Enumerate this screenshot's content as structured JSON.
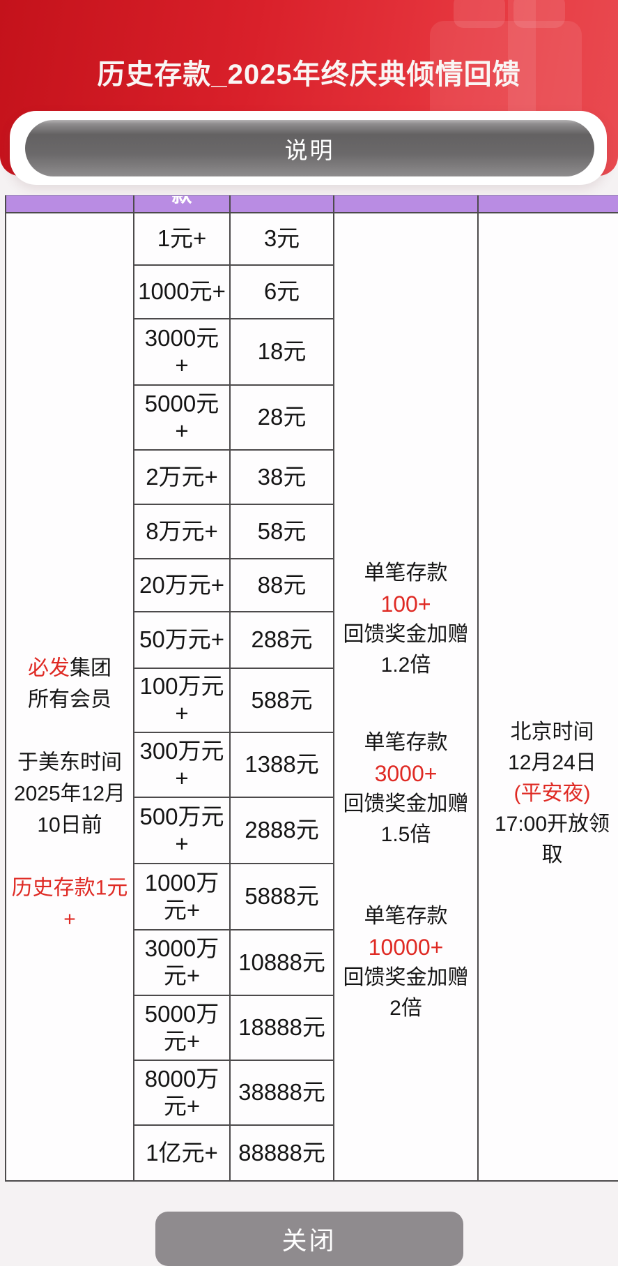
{
  "header": {
    "title": "历史存款_2025年终庆典倾情回馈"
  },
  "buttons": {
    "explain": "说明",
    "close": "关闭"
  },
  "colors": {
    "header_red_dark": "#c4121b",
    "header_red_light": "#e94b51",
    "table_header_purple": "#b98ce3",
    "border_gray": "#4c4a4b",
    "accent_red": "#df2a24",
    "pill_gray": "#6b696a",
    "close_gray": "#8f8b8e"
  },
  "icons": {
    "gift_watermark": "gift-icon"
  },
  "table": {
    "header_visible_fragment": "款",
    "condition_lines": [
      [
        {
          "t": "必发",
          "red": true
        },
        {
          "t": "集团",
          "red": false
        }
      ],
      [
        {
          "t": "所有会员",
          "red": false
        }
      ],
      [],
      [
        {
          "t": "于美东时间",
          "red": false
        }
      ],
      [
        {
          "t": "2025年12月",
          "red": false
        }
      ],
      [
        {
          "t": "10日前",
          "red": false
        }
      ],
      [],
      [
        {
          "t": "历史存款1元",
          "red": true
        }
      ],
      [
        {
          "t": "+",
          "red": true
        }
      ]
    ],
    "tiers": [
      {
        "deposit": [
          "1元+"
        ],
        "reward": "3元"
      },
      {
        "deposit": [
          "1000元+"
        ],
        "reward": "6元"
      },
      {
        "deposit": [
          "3000元",
          "+"
        ],
        "reward": "18元"
      },
      {
        "deposit": [
          "5000元",
          "+"
        ],
        "reward": "28元"
      },
      {
        "deposit": [
          "2万元+"
        ],
        "reward": "38元"
      },
      {
        "deposit": [
          "8万元+"
        ],
        "reward": "58元"
      },
      {
        "deposit": [
          "20万元+"
        ],
        "reward": "88元"
      },
      {
        "deposit": [
          "50万元+"
        ],
        "reward": "288元"
      },
      {
        "deposit": [
          "100万元",
          "+"
        ],
        "reward": "588元"
      },
      {
        "deposit": [
          "300万元",
          "+"
        ],
        "reward": "1388元"
      },
      {
        "deposit": [
          "500万元",
          "+"
        ],
        "reward": "2888元"
      },
      {
        "deposit": [
          "1000万",
          "元+"
        ],
        "reward": "5888元"
      },
      {
        "deposit": [
          "3000万",
          "元+"
        ],
        "reward": "10888元"
      },
      {
        "deposit": [
          "5000万",
          "元+"
        ],
        "reward": "18888元"
      },
      {
        "deposit": [
          "8000万",
          "元+"
        ],
        "reward": "38888元"
      },
      {
        "deposit": [
          "1亿元+"
        ],
        "reward": "88888元"
      }
    ],
    "bonuses": [
      {
        "line1": "单笔存款",
        "amount": "100+",
        "line3": "回馈奖金加赠",
        "line4": "1.2倍"
      },
      {
        "line1": "单笔存款",
        "amount": "3000+",
        "line3": "回馈奖金加赠",
        "line4": "1.5倍"
      },
      {
        "line1": "单笔存款",
        "amount": "10000+",
        "line3": "回馈奖金加赠",
        "line4": "2倍"
      }
    ],
    "claim_time_lines": [
      {
        "t": "北京时间",
        "red": false
      },
      {
        "t": "12月24日",
        "red": false
      },
      {
        "t": "(平安夜)",
        "red": true
      },
      {
        "t": "17:00开放领取",
        "red": false
      }
    ]
  }
}
